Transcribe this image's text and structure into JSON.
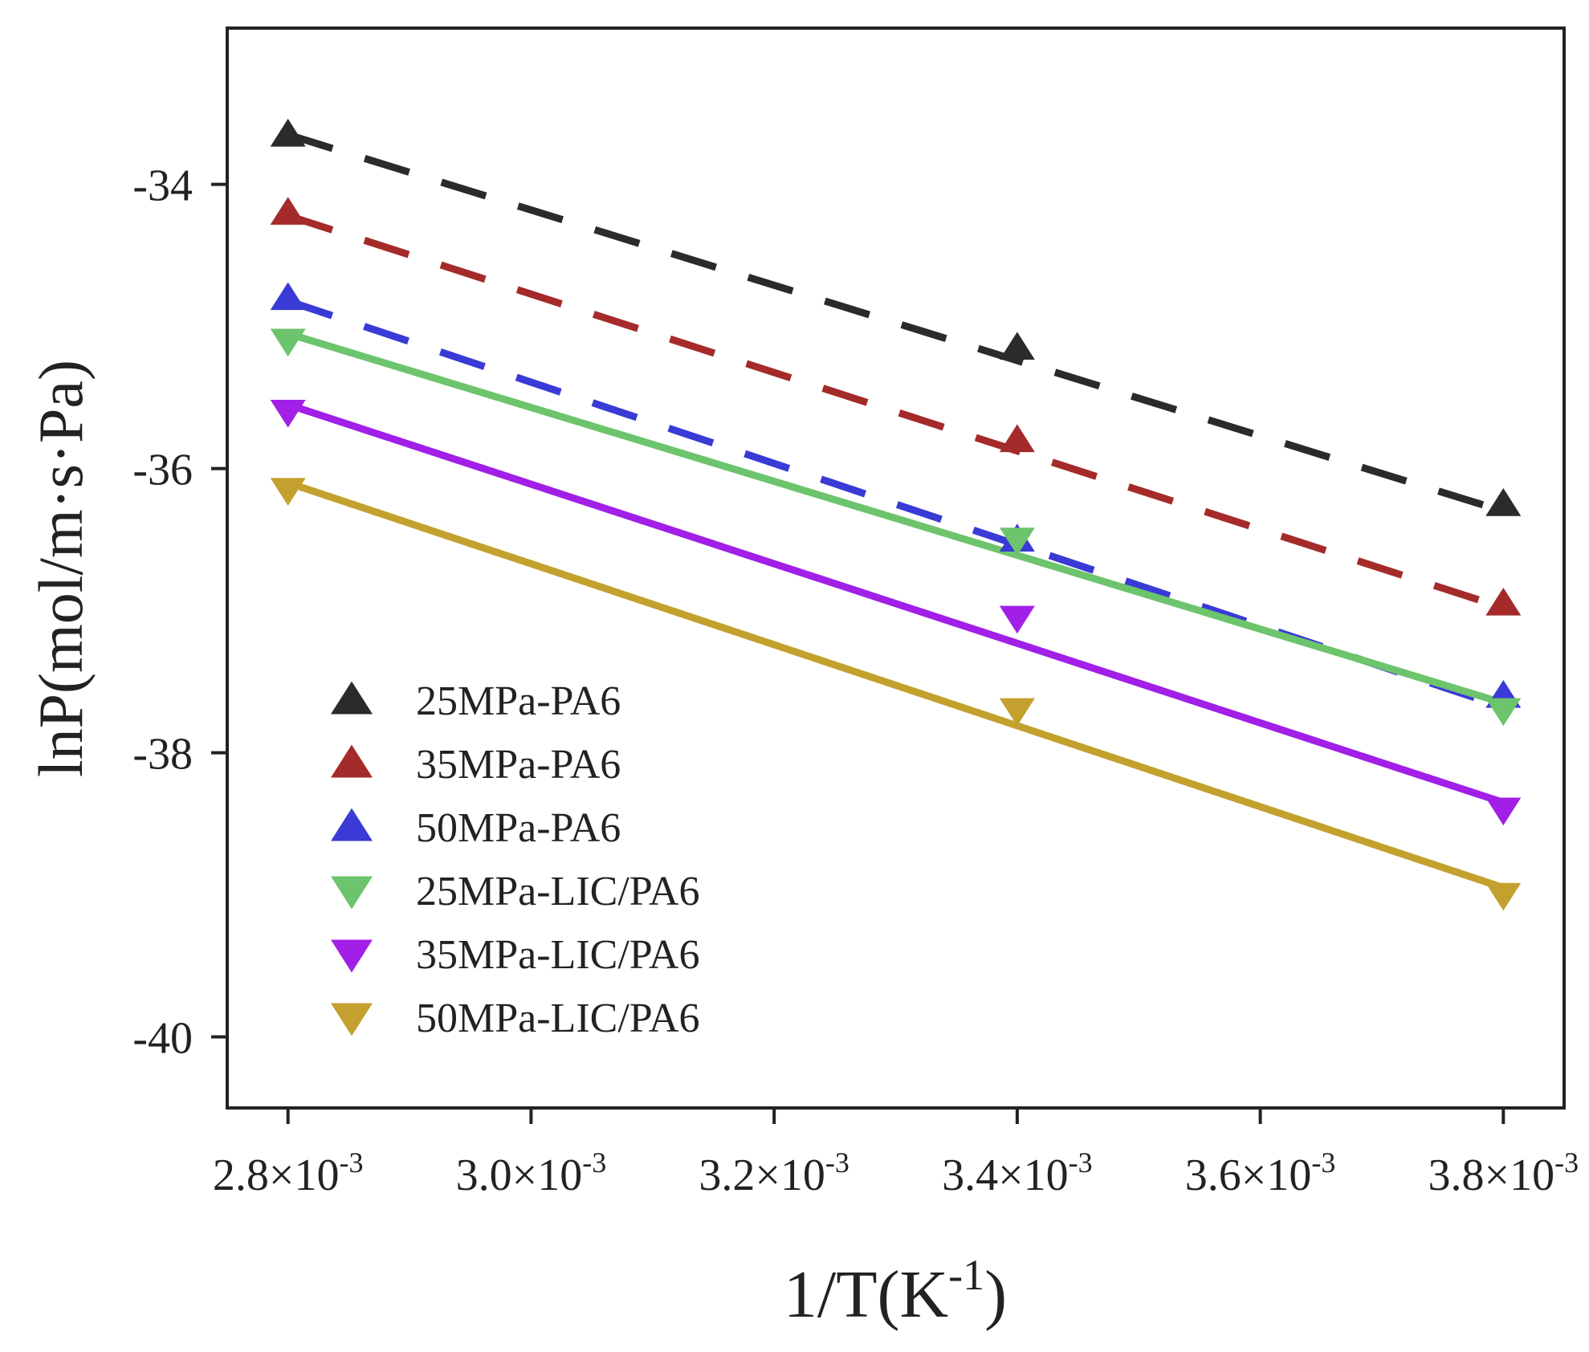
{
  "chart_data": {
    "type": "scatter",
    "title": "",
    "xlabel": "1/T(K",
    "xlabel_sup": "-1",
    "xlabel_close": ")",
    "ylabel": "lnP(mol/m·s·Pa)",
    "xlim": [
      0.00275,
      0.00385
    ],
    "ylim": [
      -40.5,
      -32.9
    ],
    "x_ticks": [
      {
        "value": 0.0028,
        "mantissa": "2.8×10",
        "exp": "-3"
      },
      {
        "value": 0.003,
        "mantissa": "3.0×10",
        "exp": "-3"
      },
      {
        "value": 0.0032,
        "mantissa": "3.2×10",
        "exp": "-3"
      },
      {
        "value": 0.0034,
        "mantissa": "3.4×10",
        "exp": "-3"
      },
      {
        "value": 0.0036,
        "mantissa": "3.6×10",
        "exp": "-3"
      },
      {
        "value": 0.0038,
        "mantissa": "3.8×10",
        "exp": "-3"
      }
    ],
    "y_ticks": [
      {
        "value": -34,
        "label": "-34"
      },
      {
        "value": -36,
        "label": "-36"
      },
      {
        "value": -38,
        "label": "-38"
      },
      {
        "value": -40,
        "label": "-40"
      }
    ],
    "legend_position": "lower-left",
    "series": [
      {
        "name": "25MPa-PA6",
        "color": "#2b2b2b",
        "marker": "triangle-up",
        "line": "dashed",
        "x": [
          0.0028,
          0.0034,
          0.0038
        ],
        "y": [
          -33.65,
          -35.15,
          -36.25
        ],
        "fit": [
          [
            0.0028,
            -33.65
          ],
          [
            0.0038,
            -36.3
          ]
        ]
      },
      {
        "name": "35MPa-PA6",
        "color": "#a52a2a",
        "marker": "triangle-up",
        "line": "dashed",
        "x": [
          0.0028,
          0.0034,
          0.0038
        ],
        "y": [
          -34.2,
          -35.8,
          -36.95
        ],
        "fit": [
          [
            0.0028,
            -34.22
          ],
          [
            0.0038,
            -36.98
          ]
        ]
      },
      {
        "name": "50MPa-PA6",
        "color": "#3a3ad6",
        "marker": "triangle-up",
        "line": "dashed",
        "x": [
          0.0028,
          0.0034,
          0.0038
        ],
        "y": [
          -34.8,
          -36.5,
          -37.6
        ],
        "fit": [
          [
            0.0028,
            -34.82
          ],
          [
            0.0038,
            -37.68
          ]
        ]
      },
      {
        "name": "25MPa-LIC/PA6",
        "color": "#6cc46c",
        "marker": "triangle-down",
        "line": "solid",
        "x": [
          0.0028,
          0.0034,
          0.0038
        ],
        "y": [
          -35.1,
          -36.5,
          -37.7
        ],
        "fit": [
          [
            0.0028,
            -35.05
          ],
          [
            0.0038,
            -37.65
          ]
        ]
      },
      {
        "name": "35MPa-LIC/PA6",
        "color": "#a11fe6",
        "marker": "triangle-down",
        "line": "solid",
        "x": [
          0.0028,
          0.0034,
          0.0038
        ],
        "y": [
          -35.6,
          -37.05,
          -38.4
        ],
        "fit": [
          [
            0.0028,
            -35.55
          ],
          [
            0.0038,
            -38.35
          ]
        ]
      },
      {
        "name": "50MPa-LIC/PA6",
        "color": "#c4a12f",
        "marker": "triangle-down",
        "line": "solid",
        "x": [
          0.0028,
          0.0034,
          0.0038
        ],
        "y": [
          -36.15,
          -37.7,
          -39.0
        ],
        "fit": [
          [
            0.0028,
            -36.1
          ],
          [
            0.0038,
            -38.95
          ]
        ]
      }
    ]
  }
}
